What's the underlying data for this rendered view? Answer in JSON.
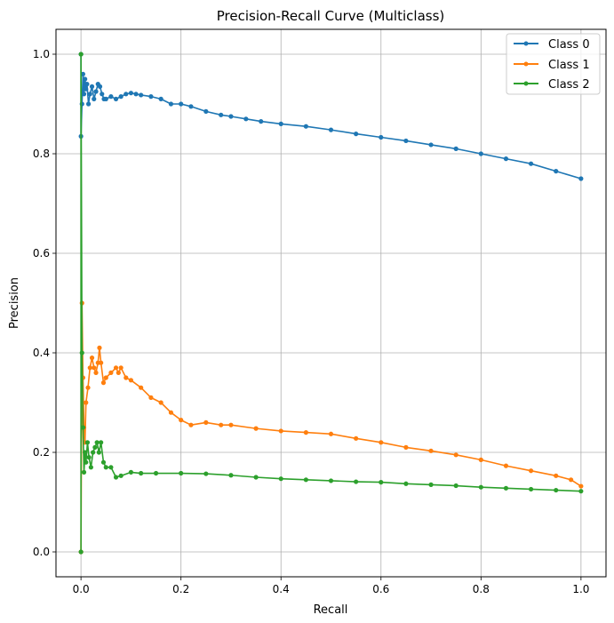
{
  "chart_data": {
    "type": "line",
    "title": "Precision-Recall Curve (Multiclass)",
    "xlabel": "Recall",
    "ylabel": "Precision",
    "xlim": [
      -0.05,
      1.05
    ],
    "ylim": [
      -0.05,
      1.05
    ],
    "xticks": [
      0.0,
      0.2,
      0.4,
      0.6,
      0.8,
      1.0
    ],
    "xtick_labels": [
      "0.0",
      "0.2",
      "0.4",
      "0.6",
      "0.8",
      "1.0"
    ],
    "yticks": [
      0.0,
      0.2,
      0.4,
      0.6,
      0.8,
      1.0
    ],
    "ytick_labels": [
      "0.0",
      "0.2",
      "0.4",
      "0.6",
      "0.8",
      "1.0"
    ],
    "grid": true,
    "legend_position": "top-right",
    "series": [
      {
        "name": "Class 0",
        "color": "#1f77b4",
        "x": [
          0.0,
          0.0,
          0.002,
          0.004,
          0.006,
          0.008,
          0.01,
          0.012,
          0.015,
          0.018,
          0.022,
          0.026,
          0.03,
          0.034,
          0.038,
          0.042,
          0.046,
          0.05,
          0.06,
          0.07,
          0.08,
          0.09,
          0.1,
          0.11,
          0.12,
          0.14,
          0.16,
          0.18,
          0.2,
          0.22,
          0.25,
          0.28,
          0.3,
          0.33,
          0.36,
          0.4,
          0.45,
          0.5,
          0.55,
          0.6,
          0.65,
          0.7,
          0.75,
          0.8,
          0.85,
          0.9,
          0.95,
          1.0
        ],
        "y": [
          1.0,
          0.835,
          0.9,
          0.96,
          0.92,
          0.95,
          0.93,
          0.94,
          0.9,
          0.92,
          0.935,
          0.91,
          0.925,
          0.94,
          0.935,
          0.92,
          0.91,
          0.91,
          0.915,
          0.91,
          0.915,
          0.92,
          0.922,
          0.92,
          0.918,
          0.915,
          0.91,
          0.9,
          0.9,
          0.895,
          0.885,
          0.878,
          0.875,
          0.87,
          0.865,
          0.86,
          0.855,
          0.848,
          0.84,
          0.833,
          0.826,
          0.818,
          0.81,
          0.8,
          0.79,
          0.78,
          0.765,
          0.75
        ]
      },
      {
        "name": "Class 1",
        "color": "#ff7f0e",
        "x": [
          0.0,
          0.002,
          0.004,
          0.006,
          0.008,
          0.01,
          0.014,
          0.018,
          0.022,
          0.026,
          0.03,
          0.034,
          0.037,
          0.04,
          0.045,
          0.05,
          0.06,
          0.07,
          0.075,
          0.08,
          0.09,
          0.1,
          0.12,
          0.14,
          0.16,
          0.18,
          0.2,
          0.22,
          0.25,
          0.28,
          0.3,
          0.35,
          0.4,
          0.45,
          0.5,
          0.55,
          0.6,
          0.65,
          0.7,
          0.75,
          0.8,
          0.85,
          0.9,
          0.95,
          0.98,
          1.0
        ],
        "y": [
          0.0,
          0.5,
          0.35,
          0.25,
          0.22,
          0.3,
          0.33,
          0.37,
          0.39,
          0.37,
          0.36,
          0.38,
          0.41,
          0.38,
          0.34,
          0.35,
          0.36,
          0.37,
          0.36,
          0.37,
          0.35,
          0.345,
          0.33,
          0.31,
          0.3,
          0.28,
          0.265,
          0.255,
          0.26,
          0.255,
          0.255,
          0.248,
          0.243,
          0.24,
          0.237,
          0.228,
          0.22,
          0.21,
          0.203,
          0.195,
          0.185,
          0.173,
          0.163,
          0.153,
          0.145,
          0.132
        ]
      },
      {
        "name": "Class 2",
        "color": "#2ca02c",
        "x": [
          0.0,
          0.0,
          0.002,
          0.004,
          0.006,
          0.008,
          0.01,
          0.013,
          0.016,
          0.02,
          0.024,
          0.028,
          0.032,
          0.036,
          0.04,
          0.045,
          0.05,
          0.06,
          0.07,
          0.08,
          0.1,
          0.12,
          0.15,
          0.2,
          0.25,
          0.3,
          0.35,
          0.4,
          0.45,
          0.5,
          0.55,
          0.6,
          0.65,
          0.7,
          0.75,
          0.8,
          0.85,
          0.9,
          0.95,
          1.0
        ],
        "y": [
          0.0,
          1.0,
          0.4,
          0.25,
          0.16,
          0.2,
          0.18,
          0.22,
          0.19,
          0.17,
          0.2,
          0.21,
          0.22,
          0.2,
          0.22,
          0.18,
          0.17,
          0.17,
          0.15,
          0.153,
          0.16,
          0.158,
          0.158,
          0.158,
          0.157,
          0.154,
          0.15,
          0.147,
          0.145,
          0.143,
          0.141,
          0.14,
          0.137,
          0.135,
          0.133,
          0.13,
          0.128,
          0.126,
          0.124,
          0.122
        ]
      }
    ]
  }
}
